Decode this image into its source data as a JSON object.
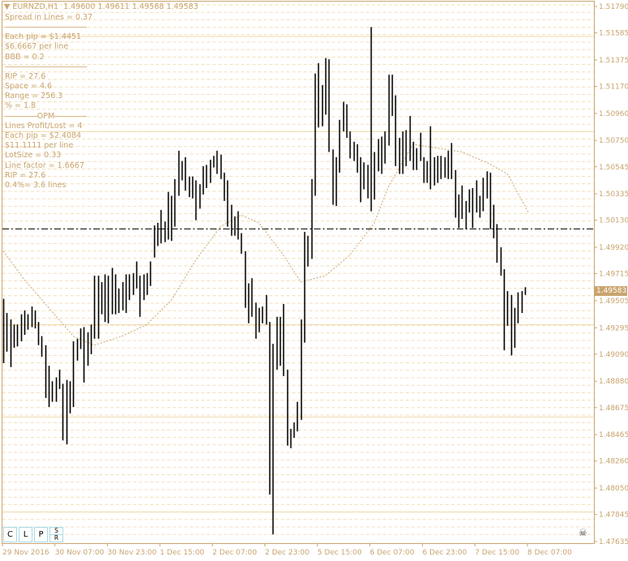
{
  "header": {
    "symbol": "EURNZD,H1",
    "open": "1.49600",
    "high": "1.49611",
    "low": "1.49568",
    "close": "1.49583",
    "menu_icon": "triangle-down-icon"
  },
  "info_panel": {
    "spread": "Spread in Lines = 0.37",
    "each_pip": "Each pip = $1.4451",
    "per_line": "$6.6667 per line",
    "bbb": "BBB = 0.2",
    "rip": "RIP = 27.6",
    "space": "Space = 4.6",
    "range": "Range = 256.3",
    "percent": "% = 1.8",
    "opm_label": "OPM",
    "lines_pl": "Lines Profit/Lost = 4",
    "each_pip2": "Each pip = $2.4084",
    "per_line2": "$11.1111 per line",
    "lotsize": "LotSize = 0.33",
    "line_factor": "Line factor = 1.6667",
    "rip2": "RIP = 27.6",
    "pct_lines": "0.4%= 3.6 lines"
  },
  "buttons": {
    "c": "C",
    "l": "L",
    "p": "P",
    "s": "S",
    "r": "R"
  },
  "current_price": "1.49583",
  "colors": {
    "accent": "#c9a46e",
    "bars": "#000000",
    "grid": "#f3dfb8",
    "button_border": "#a6dbe6"
  },
  "chart_data": {
    "type": "bar",
    "symbol": "EURNZD",
    "timeframe": "H1",
    "ylim": [
      1.47635,
      1.5179
    ],
    "y_ticks": [
      "1.51790",
      "1.51585",
      "1.51375",
      "1.51170",
      "1.50960",
      "1.50750",
      "1.50545",
      "1.50335",
      "1.50130",
      "1.49920",
      "1.49715",
      "1.49505",
      "1.49295",
      "1.49090",
      "1.48880",
      "1.48675",
      "1.48465",
      "1.48260",
      "1.48050",
      "1.47845",
      "1.47635"
    ],
    "x_ticks": [
      "29 Nov 2016",
      "30 Nov 07:00",
      "30 Nov 23:00",
      "1 Dec 15:00",
      "2 Dec 07:00",
      "2 Dec 23:00",
      "5 Dec 15:00",
      "6 Dec 07:00",
      "6 Dec 23:00",
      "7 Dec 15:00",
      "8 Dec 07:00"
    ],
    "bars_high_low": [
      [
        1.4952,
        1.4902
      ],
      [
        1.4941,
        1.4911
      ],
      [
        1.4936,
        1.4899
      ],
      [
        1.4932,
        1.4914
      ],
      [
        1.4932,
        1.4915
      ],
      [
        1.494,
        1.4919
      ],
      [
        1.4943,
        1.4924
      ],
      [
        1.494,
        1.4928
      ],
      [
        1.4946,
        1.493
      ],
      [
        1.4943,
        1.4929
      ],
      [
        1.4934,
        1.4916
      ],
      [
        1.4923,
        1.4907
      ],
      [
        1.4916,
        1.4875
      ],
      [
        1.49,
        1.4868
      ],
      [
        1.4888,
        1.4872
      ],
      [
        1.4891,
        1.4872
      ],
      [
        1.4897,
        1.4882
      ],
      [
        1.4886,
        1.4842
      ],
      [
        1.4889,
        1.4839
      ],
      [
        1.4888,
        1.4863
      ],
      [
        1.4919,
        1.4868
      ],
      [
        1.4921,
        1.4904
      ],
      [
        1.4929,
        1.4913
      ],
      [
        1.493,
        1.4887
      ],
      [
        1.4926,
        1.49
      ],
      [
        1.4932,
        1.4909
      ],
      [
        1.497,
        1.4921
      ],
      [
        1.497,
        1.4921
      ],
      [
        1.4965,
        1.494
      ],
      [
        1.4971,
        1.4934
      ],
      [
        1.497,
        1.4933
      ],
      [
        1.4976,
        1.494
      ],
      [
        1.4971,
        1.494
      ],
      [
        1.496,
        1.4941
      ],
      [
        1.4965,
        1.4943
      ],
      [
        1.4971,
        1.4941
      ],
      [
        1.4971,
        1.4951
      ],
      [
        1.4972,
        1.4955
      ],
      [
        1.4981,
        1.496
      ],
      [
        1.497,
        1.4938
      ],
      [
        1.4971,
        1.4951
      ],
      [
        1.4972,
        1.4955
      ],
      [
        1.4981,
        1.4962
      ],
      [
        1.5009,
        1.4984
      ],
      [
        1.5011,
        1.4993
      ],
      [
        1.5021,
        1.4995
      ],
      [
        1.5012,
        1.4996
      ],
      [
        1.5035,
        1.4998
      ],
      [
        1.5032,
        1.4997
      ],
      [
        1.5045,
        1.5008
      ],
      [
        1.5067,
        1.5032
      ],
      [
        1.5059,
        1.5044
      ],
      [
        1.5062,
        1.5036
      ],
      [
        1.5047,
        1.5031
      ],
      [
        1.5047,
        1.503
      ],
      [
        1.5044,
        1.5013
      ],
      [
        1.5041,
        1.5022
      ],
      [
        1.5055,
        1.5033
      ],
      [
        1.5056,
        1.5038
      ],
      [
        1.506,
        1.5042
      ],
      [
        1.5063,
        1.5054
      ],
      [
        1.5067,
        1.5049
      ],
      [
        1.5064,
        1.5045
      ],
      [
        1.505,
        1.5028
      ],
      [
        1.5044,
        1.5008
      ],
      [
        1.5025,
        1.5001
      ],
      [
        1.5016,
        1.5001
      ],
      [
        1.502,
        1.4998
      ],
      [
        1.5003,
        1.4987
      ],
      [
        1.4989,
        1.4945
      ],
      [
        1.4964,
        1.4933
      ],
      [
        1.4968,
        1.4938
      ],
      [
        1.4949,
        1.4921
      ],
      [
        1.4945,
        1.4926
      ],
      [
        1.4946,
        1.4933
      ],
      [
        1.4955,
        1.4932
      ],
      [
        1.4934,
        1.48
      ],
      [
        1.4917,
        1.4769
      ],
      [
        1.4938,
        1.4897
      ],
      [
        1.4938,
        1.49
      ],
      [
        1.4948,
        1.4892
      ],
      [
        1.4897,
        1.4838
      ],
      [
        1.4851,
        1.4836
      ],
      [
        1.4856,
        1.4844
      ],
      [
        1.4872,
        1.4849
      ],
      [
        1.4936,
        1.4858
      ],
      [
        1.5004,
        1.4918
      ],
      [
        1.5001,
        1.4977
      ],
      [
        1.5045,
        1.4983
      ],
      [
        1.5127,
        1.5032
      ],
      [
        1.5135,
        1.5085
      ],
      [
        1.5118,
        1.5086
      ],
      [
        1.5139,
        1.5095
      ],
      [
        1.5138,
        1.5066
      ],
      [
        1.5068,
        1.5025
      ],
      [
        1.5062,
        1.5024
      ],
      [
        1.5091,
        1.505
      ],
      [
        1.5105,
        1.5082
      ],
      [
        1.5103,
        1.5077
      ],
      [
        1.5082,
        1.5061
      ],
      [
        1.5074,
        1.5059
      ],
      [
        1.5072,
        1.505
      ],
      [
        1.5062,
        1.5027
      ],
      [
        1.5058,
        1.5037
      ],
      [
        1.5056,
        1.503
      ],
      [
        1.5163,
        1.502
      ],
      [
        1.5066,
        1.5029
      ],
      [
        1.5076,
        1.5051
      ],
      [
        1.5078,
        1.5049
      ],
      [
        1.5082,
        1.5057
      ],
      [
        1.5126,
        1.5071
      ],
      [
        1.5126,
        1.5094
      ],
      [
        1.511,
        1.5055
      ],
      [
        1.5077,
        1.5049
      ],
      [
        1.5082,
        1.5049
      ],
      [
        1.5083,
        1.5055
      ],
      [
        1.5094,
        1.5059
      ],
      [
        1.5074,
        1.5052
      ],
      [
        1.5069,
        1.5052
      ],
      [
        1.5081,
        1.5059
      ],
      [
        1.5062,
        1.5042
      ],
      [
        1.5059,
        1.5042
      ],
      [
        1.5086,
        1.5037
      ],
      [
        1.5062,
        1.504
      ],
      [
        1.5063,
        1.5042
      ],
      [
        1.5063,
        1.5045
      ],
      [
        1.5062,
        1.5046
      ],
      [
        1.5067,
        1.5045
      ],
      [
        1.5073,
        1.5045
      ],
      [
        1.5052,
        1.5015
      ],
      [
        1.5033,
        1.5007
      ],
      [
        1.504,
        1.5014
      ],
      [
        1.5028,
        1.5006
      ],
      [
        1.5037,
        1.5019
      ],
      [
        1.5038,
        1.5007
      ],
      [
        1.5044,
        1.5019
      ],
      [
        1.5032,
        1.5015
      ],
      [
        1.5046,
        1.502
      ],
      [
        1.5051,
        1.503
      ],
      [
        1.505,
        1.5006
      ],
      [
        1.5025,
        1.4999
      ],
      [
        1.501,
        1.498
      ],
      [
        1.4992,
        1.497
      ],
      [
        1.4975,
        1.4912
      ],
      [
        1.4958,
        1.4931
      ],
      [
        1.4955,
        1.4908
      ],
      [
        1.4945,
        1.4914
      ],
      [
        1.4957,
        1.4933
      ],
      [
        1.4958,
        1.4941
      ],
      [
        1.4961,
        1.4955
      ]
    ],
    "moving_average": [
      [
        1,
        1.4989
      ],
      [
        7,
        1.4967
      ],
      [
        14,
        1.4945
      ],
      [
        21,
        1.4923
      ],
      [
        27,
        1.4916
      ],
      [
        35,
        1.4923
      ],
      [
        42,
        1.4932
      ],
      [
        49,
        1.4951
      ],
      [
        56,
        1.4982
      ],
      [
        63,
        1.5008
      ],
      [
        69,
        1.5017
      ],
      [
        74,
        1.5011
      ],
      [
        81,
        1.4986
      ],
      [
        86,
        1.4965
      ],
      [
        93,
        1.497
      ],
      [
        100,
        1.4986
      ],
      [
        107,
        1.5011
      ],
      [
        111,
        1.5039
      ],
      [
        118,
        1.5072
      ],
      [
        125,
        1.5069
      ],
      [
        132,
        1.5066
      ],
      [
        139,
        1.5058
      ],
      [
        145,
        1.5049
      ],
      [
        151,
        1.5019
      ]
    ],
    "dash_dot_level": 1.50063,
    "solid_levels": [
      1.51557,
      1.50819,
      1.4932,
      1.48602,
      1.47865
    ],
    "grid": true
  }
}
